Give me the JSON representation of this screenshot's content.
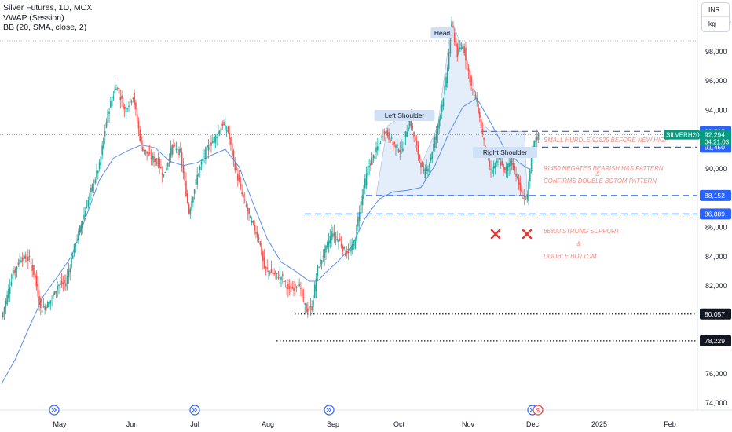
{
  "chart_title": "Silver Futures, 1D, MCX",
  "indicators": [
    "VWAP (Session)",
    "BB (20, SMA, close, 2)"
  ],
  "currency": {
    "code": "INR",
    "unit": "kg"
  },
  "symbol_label": "SILVERH2025",
  "symbol_price": "92,294",
  "countdown": "04:21:03",
  "colors": {
    "up": "#26a69a",
    "down": "#ef5350",
    "ma": "#5b8def",
    "dashed": "#2962ff",
    "annotation": "#f28b82",
    "pattern_fill": "#dbe8f8"
  },
  "chart_data": {
    "type": "candlestick",
    "yaxis": {
      "range": [
        73500,
        101500
      ],
      "ticks": [
        {
          "v": 100000,
          "label": "100,000"
        },
        {
          "v": 98000,
          "label": "98,000"
        },
        {
          "v": 96000,
          "label": "96,000"
        },
        {
          "v": 94000,
          "label": "94,000"
        },
        {
          "v": 90000,
          "label": "90,000"
        },
        {
          "v": 86000,
          "label": "86,000"
        },
        {
          "v": 84000,
          "label": "84,000"
        },
        {
          "v": 82000,
          "label": "82,000"
        },
        {
          "v": 76000,
          "label": "76,000"
        },
        {
          "v": 74000,
          "label": "74,000"
        }
      ]
    },
    "xaxis": {
      "labels": [
        "May",
        "Jun",
        "Jul",
        "Aug",
        "Sep",
        "Oct",
        "Nov",
        "Dec",
        "2025",
        "Feb"
      ]
    },
    "ohlc_anchors": [
      [
        0,
        79800
      ],
      [
        8,
        82800
      ],
      [
        14,
        83900
      ],
      [
        20,
        83800
      ],
      [
        24,
        82500
      ],
      [
        28,
        80400
      ],
      [
        34,
        80800
      ],
      [
        40,
        82000
      ],
      [
        46,
        82200
      ],
      [
        52,
        84600
      ],
      [
        58,
        86500
      ],
      [
        64,
        88500
      ],
      [
        70,
        90200
      ],
      [
        76,
        93800
      ],
      [
        82,
        95700
      ],
      [
        88,
        94000
      ],
      [
        94,
        95000
      ],
      [
        100,
        91500
      ],
      [
        106,
        90800
      ],
      [
        112,
        90400
      ],
      [
        116,
        89500
      ],
      [
        122,
        91500
      ],
      [
        128,
        91000
      ],
      [
        134,
        87000
      ],
      [
        140,
        89500
      ],
      [
        146,
        91200
      ],
      [
        152,
        92000
      ],
      [
        158,
        93000
      ],
      [
        162,
        92500
      ],
      [
        166,
        90500
      ],
      [
        172,
        88200
      ],
      [
        178,
        86500
      ],
      [
        184,
        85200
      ],
      [
        188,
        83200
      ],
      [
        194,
        82800
      ],
      [
        200,
        82600
      ],
      [
        206,
        81600
      ],
      [
        212,
        82200
      ],
      [
        218,
        80300
      ],
      [
        222,
        80500
      ],
      [
        226,
        83200
      ],
      [
        232,
        84500
      ],
      [
        236,
        85600
      ],
      [
        242,
        85000
      ],
      [
        246,
        84200
      ],
      [
        252,
        84700
      ],
      [
        256,
        87200
      ],
      [
        262,
        90000
      ],
      [
        268,
        91200
      ],
      [
        274,
        92600
      ],
      [
        280,
        91700
      ],
      [
        286,
        91200
      ],
      [
        292,
        93400
      ],
      [
        298,
        91000
      ],
      [
        302,
        89600
      ],
      [
        306,
        90400
      ],
      [
        312,
        92800
      ],
      [
        318,
        96000
      ],
      [
        322,
        99800
      ],
      [
        326,
        97800
      ],
      [
        330,
        98500
      ],
      [
        336,
        95600
      ],
      [
        340,
        94500
      ],
      [
        346,
        91200
      ],
      [
        350,
        89800
      ],
      [
        356,
        90600
      ],
      [
        360,
        89700
      ],
      [
        364,
        90600
      ],
      [
        368,
        89600
      ],
      [
        372,
        88200
      ],
      [
        376,
        88000
      ],
      [
        380,
        91500
      ],
      [
        384,
        92294
      ]
    ],
    "moving_average": [
      [
        0,
        75300
      ],
      [
        10,
        77000
      ],
      [
        20,
        79200
      ],
      [
        30,
        81300
      ],
      [
        40,
        82600
      ],
      [
        50,
        84000
      ],
      [
        60,
        86600
      ],
      [
        70,
        89200
      ],
      [
        80,
        90700
      ],
      [
        90,
        91200
      ],
      [
        100,
        91600
      ],
      [
        110,
        91400
      ],
      [
        120,
        90500
      ],
      [
        130,
        90200
      ],
      [
        140,
        90400
      ],
      [
        150,
        90900
      ],
      [
        160,
        91300
      ],
      [
        170,
        90100
      ],
      [
        180,
        87600
      ],
      [
        190,
        85200
      ],
      [
        200,
        83600
      ],
      [
        210,
        83000
      ],
      [
        220,
        82300
      ],
      [
        226,
        82300
      ],
      [
        232,
        82900
      ],
      [
        240,
        83600
      ],
      [
        250,
        84600
      ],
      [
        260,
        86600
      ],
      [
        270,
        87900
      ],
      [
        280,
        88400
      ],
      [
        290,
        88500
      ],
      [
        300,
        88700
      ],
      [
        310,
        90200
      ],
      [
        320,
        92400
      ],
      [
        330,
        94200
      ],
      [
        340,
        94800
      ],
      [
        350,
        93100
      ],
      [
        360,
        91300
      ],
      [
        370,
        90400
      ],
      [
        380,
        89800
      ]
    ],
    "pattern_labels": [
      "Head",
      "Left Shoulder",
      "Right Shoulder"
    ],
    "price_levels": [
      {
        "value": 92525,
        "label": "92,525",
        "style": "dashed"
      },
      {
        "value": 91450,
        "label": "91,450",
        "style": "dashed"
      },
      {
        "value": 88152,
        "label": "88,152",
        "style": "dashed"
      },
      {
        "value": 86889,
        "label": "86,889",
        "style": "dashed"
      },
      {
        "value": 80057,
        "label": "80,057",
        "style": "dotted"
      },
      {
        "value": 78229,
        "label": "78,229",
        "style": "dotted"
      }
    ],
    "annotations": [
      "SMALL HURDLE 92525 BEFORE NEW HIGH",
      "91450 NEGATES BEARISH H&S PATTERN",
      "&",
      "CONFIRMS DOUBLE BOTOM PATTERN",
      "86800 STRONG SUPPORT",
      "&",
      "DOUBLE BOTTOM"
    ]
  }
}
